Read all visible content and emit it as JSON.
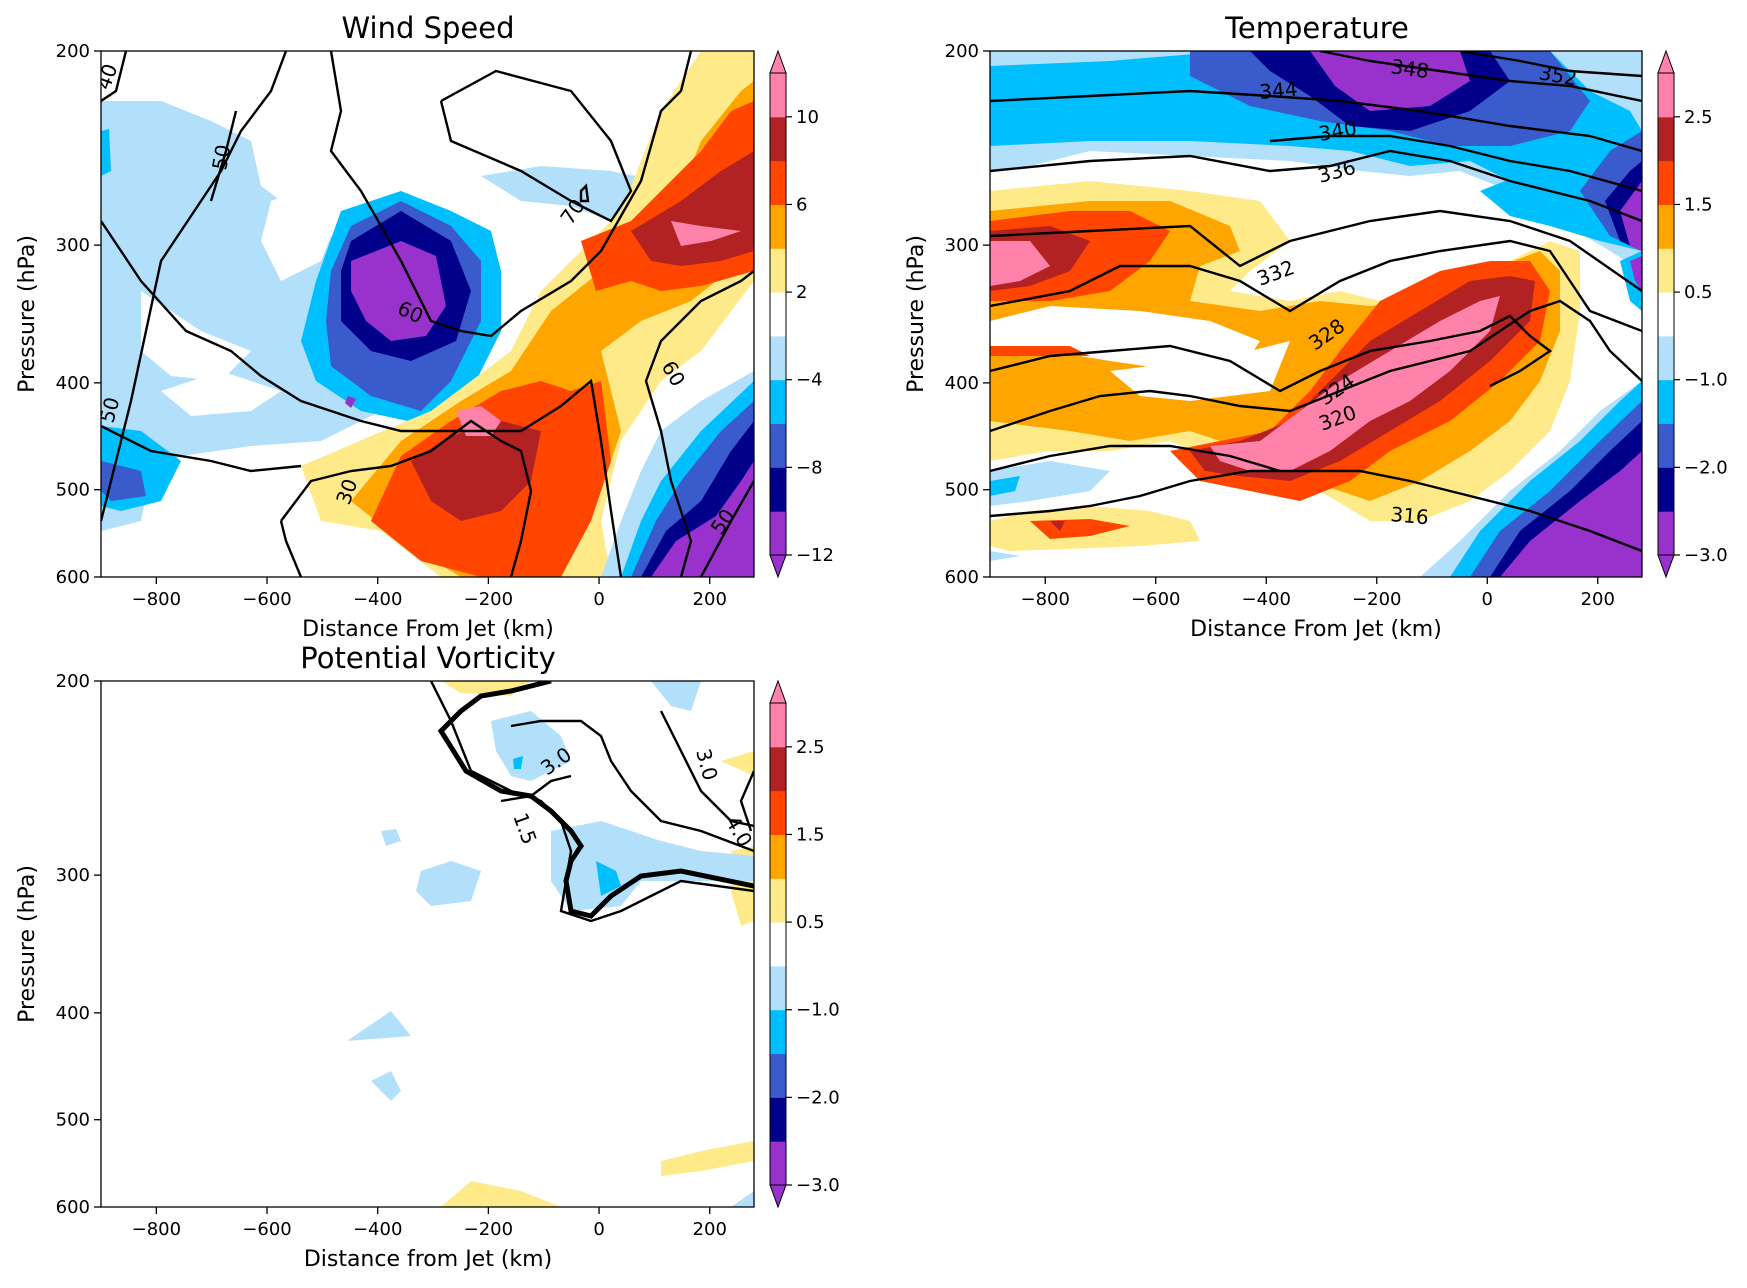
{
  "chart_data": [
    {
      "type": "contour",
      "title": "Wind Speed",
      "xlabel": "Distance From Jet (km)",
      "ylabel": "Pressure (hPa)",
      "xlim": [
        -900,
        280
      ],
      "ylim": [
        600,
        200
      ],
      "y_scale": "log",
      "xticks": [
        "-800",
        "-600",
        "-400",
        "-200",
        "0",
        "200"
      ],
      "yticks": [
        "200",
        "300",
        "400",
        "500",
        "600"
      ],
      "colorbar": {
        "levels": [
          -12,
          -10,
          -8,
          -6,
          -4,
          -2,
          2,
          4,
          6,
          8,
          10,
          12
        ],
        "tick_labels": [
          "-12",
          "-8",
          "-4",
          "2",
          "6",
          "10"
        ],
        "extend": "both",
        "colors": [
          "#9932CC",
          "#00008B",
          "#3A5BCB",
          "#00BFFF",
          "#B2DFFA",
          "#FFFFFF",
          "#FFEA8A",
          "#FFA500",
          "#FF4500",
          "#B22222",
          "#FF82AB",
          "#FF82AB"
        ]
      },
      "contour_lines": {
        "levels": [
          30,
          40,
          50,
          60,
          70
        ],
        "labels": [
          "40",
          "50",
          "60",
          "70",
          "60",
          "50",
          "30",
          "50"
        ]
      },
      "grid": false
    },
    {
      "type": "contour",
      "title": "Temperature",
      "xlabel": "Distance From Jet (km)",
      "ylabel": "Pressure (hPa)",
      "xlim": [
        -900,
        280
      ],
      "ylim": [
        600,
        200
      ],
      "y_scale": "log",
      "xticks": [
        "-800",
        "-600",
        "-400",
        "-200",
        "0",
        "200"
      ],
      "yticks": [
        "200",
        "300",
        "400",
        "500",
        "600"
      ],
      "colorbar": {
        "levels": [
          -3.0,
          -2.5,
          -2.0,
          -1.5,
          -1.0,
          -0.5,
          0.5,
          1.0,
          1.5,
          2.0,
          2.5,
          3.0
        ],
        "tick_labels": [
          "-3.0",
          "-2.0",
          "-1.0",
          "0.5",
          "1.5",
          "2.5"
        ],
        "extend": "both",
        "colors": [
          "#9932CC",
          "#00008B",
          "#3A5BCB",
          "#00BFFF",
          "#B2DFFA",
          "#FFFFFF",
          "#FFEA8A",
          "#FFA500",
          "#FF4500",
          "#B22222",
          "#FF82AB",
          "#FF82AB"
        ]
      },
      "contour_lines": {
        "levels": [
          316,
          320,
          324,
          328,
          332,
          336,
          340,
          344,
          348,
          352
        ],
        "labels": [
          "344",
          "348",
          "352",
          "340",
          "336",
          "332",
          "328",
          "324",
          "320",
          "316"
        ]
      },
      "grid": false
    },
    {
      "type": "contour",
      "title": "Potential Vorticity",
      "xlabel": "Distance from Jet (km)",
      "ylabel": "Pressure (hPa)",
      "xlim": [
        -900,
        280
      ],
      "ylim": [
        600,
        200
      ],
      "y_scale": "log",
      "xticks": [
        "-800",
        "-600",
        "-400",
        "-200",
        "0",
        "200"
      ],
      "yticks": [
        "200",
        "300",
        "400",
        "500",
        "600"
      ],
      "colorbar": {
        "levels": [
          -3.0,
          -2.5,
          -2.0,
          -1.5,
          -1.0,
          -0.5,
          0.5,
          1.0,
          1.5,
          2.0,
          2.5,
          3.0
        ],
        "tick_labels": [
          "-3.0",
          "-2.0",
          "-1.0",
          "0.5",
          "1.5",
          "2.5"
        ],
        "extend": "both",
        "colors": [
          "#9932CC",
          "#00008B",
          "#3A5BCB",
          "#00BFFF",
          "#B2DFFA",
          "#FFFFFF",
          "#FFEA8A",
          "#FFA500",
          "#FF4500",
          "#B22222",
          "#FF82AB",
          "#FF82AB"
        ]
      },
      "contour_lines": {
        "levels": [
          1.5,
          2.0,
          3.0,
          4.0
        ],
        "labels": [
          "3.0",
          "3.0",
          "1.5",
          "4.0"
        ]
      },
      "grid": false
    }
  ]
}
